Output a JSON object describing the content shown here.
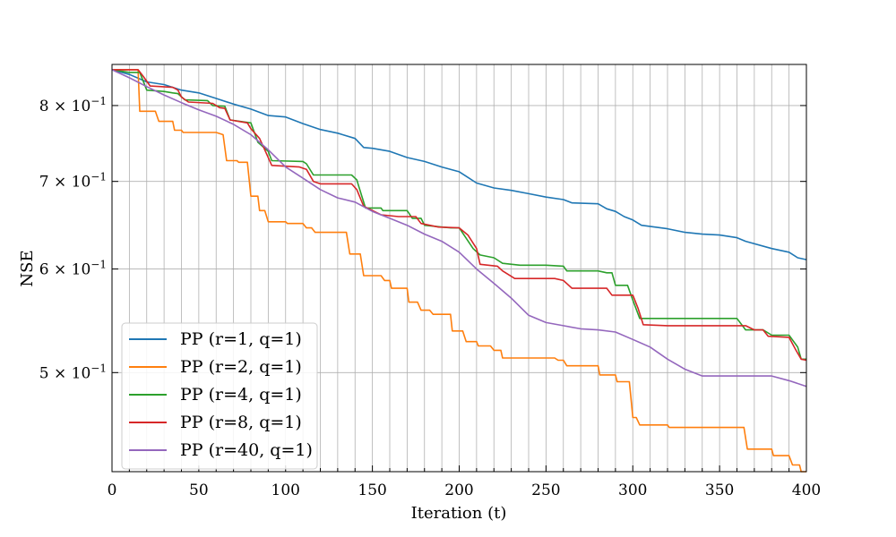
{
  "chart_data": {
    "type": "line",
    "xlabel": "Iteration (t)",
    "ylabel": "NSE",
    "xlim": [
      0,
      400
    ],
    "ylim": [
      0.42,
      0.86
    ],
    "log_y": true,
    "grid": true,
    "legend_position": "bottom-left",
    "x_ticks": [
      0,
      50,
      100,
      150,
      200,
      250,
      300,
      350,
      400
    ],
    "x_tick_labels": [
      "0",
      "50",
      "100",
      "150",
      "200",
      "250",
      "300",
      "350",
      "400"
    ],
    "y_ticks": [
      0.5,
      0.6,
      0.7,
      0.8
    ],
    "y_tick_labels": [
      {
        "base": "5 × 10",
        "exp": "−1"
      },
      {
        "base": "6 × 10",
        "exp": "−1"
      },
      {
        "base": "7 × 10",
        "exp": "−1"
      },
      {
        "base": "8 × 10",
        "exp": "−1"
      }
    ],
    "series": [
      {
        "name": "PP (r=1, q=1)",
        "color": "#1f77b4",
        "points": [
          [
            0,
            0.852
          ],
          [
            10,
            0.845
          ],
          [
            20,
            0.834
          ],
          [
            30,
            0.83
          ],
          [
            40,
            0.822
          ],
          [
            50,
            0.818
          ],
          [
            60,
            0.81
          ],
          [
            70,
            0.802
          ],
          [
            80,
            0.795
          ],
          [
            90,
            0.786
          ],
          [
            100,
            0.784
          ],
          [
            110,
            0.775
          ],
          [
            120,
            0.767
          ],
          [
            130,
            0.762
          ],
          [
            140,
            0.755
          ],
          [
            145,
            0.743
          ],
          [
            150,
            0.742
          ],
          [
            160,
            0.738
          ],
          [
            170,
            0.73
          ],
          [
            180,
            0.725
          ],
          [
            190,
            0.718
          ],
          [
            200,
            0.712
          ],
          [
            205,
            0.705
          ],
          [
            210,
            0.698
          ],
          [
            220,
            0.692
          ],
          [
            230,
            0.689
          ],
          [
            240,
            0.685
          ],
          [
            250,
            0.681
          ],
          [
            260,
            0.678
          ],
          [
            265,
            0.674
          ],
          [
            280,
            0.673
          ],
          [
            285,
            0.667
          ],
          [
            290,
            0.664
          ],
          [
            295,
            0.658
          ],
          [
            300,
            0.654
          ],
          [
            305,
            0.648
          ],
          [
            320,
            0.644
          ],
          [
            330,
            0.64
          ],
          [
            340,
            0.638
          ],
          [
            350,
            0.637
          ],
          [
            360,
            0.634
          ],
          [
            365,
            0.63
          ],
          [
            380,
            0.622
          ],
          [
            390,
            0.618
          ],
          [
            395,
            0.612
          ],
          [
            400,
            0.61
          ]
        ]
      },
      {
        "name": "PP (r=2, q=1)",
        "color": "#ff7f0e",
        "points": [
          [
            0,
            0.852
          ],
          [
            15,
            0.852
          ],
          [
            16,
            0.792
          ],
          [
            25,
            0.792
          ],
          [
            27,
            0.778
          ],
          [
            35,
            0.778
          ],
          [
            36,
            0.766
          ],
          [
            40,
            0.766
          ],
          [
            41,
            0.763
          ],
          [
            60,
            0.763
          ],
          [
            64,
            0.76
          ],
          [
            66,
            0.726
          ],
          [
            72,
            0.726
          ],
          [
            73,
            0.724
          ],
          [
            78,
            0.724
          ],
          [
            80,
            0.682
          ],
          [
            84,
            0.682
          ],
          [
            85,
            0.665
          ],
          [
            88,
            0.665
          ],
          [
            90,
            0.652
          ],
          [
            100,
            0.652
          ],
          [
            101,
            0.65
          ],
          [
            110,
            0.65
          ],
          [
            112,
            0.645
          ],
          [
            115,
            0.645
          ],
          [
            117,
            0.64
          ],
          [
            135,
            0.64
          ],
          [
            137,
            0.616
          ],
          [
            143,
            0.616
          ],
          [
            145,
            0.593
          ],
          [
            155,
            0.593
          ],
          [
            157,
            0.588
          ],
          [
            160,
            0.588
          ],
          [
            161,
            0.58
          ],
          [
            170,
            0.58
          ],
          [
            171,
            0.566
          ],
          [
            176,
            0.566
          ],
          [
            178,
            0.558
          ],
          [
            183,
            0.558
          ],
          [
            185,
            0.554
          ],
          [
            195,
            0.554
          ],
          [
            196,
            0.538
          ],
          [
            202,
            0.538
          ],
          [
            204,
            0.528
          ],
          [
            210,
            0.528
          ],
          [
            211,
            0.524
          ],
          [
            218,
            0.524
          ],
          [
            220,
            0.52
          ],
          [
            224,
            0.52
          ],
          [
            225,
            0.513
          ],
          [
            255,
            0.513
          ],
          [
            257,
            0.511
          ],
          [
            260,
            0.511
          ],
          [
            262,
            0.506
          ],
          [
            280,
            0.506
          ],
          [
            281,
            0.498
          ],
          [
            290,
            0.498
          ],
          [
            291,
            0.492
          ],
          [
            298,
            0.492
          ],
          [
            300,
            0.462
          ],
          [
            302,
            0.462
          ],
          [
            304,
            0.456
          ],
          [
            320,
            0.456
          ],
          [
            321,
            0.454
          ],
          [
            364,
            0.454
          ],
          [
            366,
            0.437
          ],
          [
            380,
            0.437
          ],
          [
            381,
            0.432
          ],
          [
            390,
            0.432
          ],
          [
            392,
            0.425
          ],
          [
            396,
            0.425
          ],
          [
            397,
            0.42
          ],
          [
            400,
            0.42
          ]
        ]
      },
      {
        "name": "PP (r=4, q=1)",
        "color": "#2ca02c",
        "points": [
          [
            0,
            0.852
          ],
          [
            10,
            0.848
          ],
          [
            16,
            0.848
          ],
          [
            20,
            0.822
          ],
          [
            30,
            0.82
          ],
          [
            35,
            0.818
          ],
          [
            38,
            0.817
          ],
          [
            42,
            0.808
          ],
          [
            55,
            0.807
          ],
          [
            58,
            0.8
          ],
          [
            65,
            0.799
          ],
          [
            68,
            0.78
          ],
          [
            80,
            0.776
          ],
          [
            84,
            0.75
          ],
          [
            90,
            0.738
          ],
          [
            92,
            0.726
          ],
          [
            110,
            0.725
          ],
          [
            112,
            0.722
          ],
          [
            116,
            0.708
          ],
          [
            138,
            0.708
          ],
          [
            141,
            0.702
          ],
          [
            142,
            0.695
          ],
          [
            146,
            0.668
          ],
          [
            155,
            0.668
          ],
          [
            156,
            0.665
          ],
          [
            170,
            0.665
          ],
          [
            173,
            0.656
          ],
          [
            178,
            0.656
          ],
          [
            180,
            0.648
          ],
          [
            190,
            0.646
          ],
          [
            195,
            0.645
          ],
          [
            200,
            0.645
          ],
          [
            208,
            0.622
          ],
          [
            212,
            0.615
          ],
          [
            220,
            0.612
          ],
          [
            225,
            0.606
          ],
          [
            235,
            0.604
          ],
          [
            250,
            0.604
          ],
          [
            260,
            0.603
          ],
          [
            262,
            0.598
          ],
          [
            280,
            0.598
          ],
          [
            285,
            0.596
          ],
          [
            288,
            0.596
          ],
          [
            290,
            0.583
          ],
          [
            297,
            0.583
          ],
          [
            300,
            0.568
          ],
          [
            304,
            0.55
          ],
          [
            360,
            0.55
          ],
          [
            365,
            0.539
          ],
          [
            375,
            0.539
          ],
          [
            380,
            0.534
          ],
          [
            390,
            0.534
          ],
          [
            395,
            0.523
          ],
          [
            397,
            0.512
          ],
          [
            400,
            0.512
          ]
        ]
      },
      {
        "name": "PP (r=8, q=1)",
        "color": "#d62728",
        "points": [
          [
            0,
            0.852
          ],
          [
            15,
            0.852
          ],
          [
            18,
            0.842
          ],
          [
            22,
            0.828
          ],
          [
            35,
            0.826
          ],
          [
            38,
            0.822
          ],
          [
            40,
            0.812
          ],
          [
            44,
            0.805
          ],
          [
            58,
            0.803
          ],
          [
            62,
            0.797
          ],
          [
            65,
            0.796
          ],
          [
            68,
            0.78
          ],
          [
            78,
            0.776
          ],
          [
            80,
            0.768
          ],
          [
            85,
            0.755
          ],
          [
            88,
            0.74
          ],
          [
            92,
            0.72
          ],
          [
            108,
            0.718
          ],
          [
            112,
            0.715
          ],
          [
            116,
            0.7
          ],
          [
            120,
            0.697
          ],
          [
            138,
            0.697
          ],
          [
            141,
            0.69
          ],
          [
            145,
            0.67
          ],
          [
            155,
            0.66
          ],
          [
            165,
            0.658
          ],
          [
            175,
            0.658
          ],
          [
            178,
            0.65
          ],
          [
            188,
            0.646
          ],
          [
            200,
            0.645
          ],
          [
            205,
            0.637
          ],
          [
            210,
            0.622
          ],
          [
            212,
            0.605
          ],
          [
            222,
            0.603
          ],
          [
            225,
            0.598
          ],
          [
            232,
            0.59
          ],
          [
            255,
            0.59
          ],
          [
            260,
            0.588
          ],
          [
            265,
            0.58
          ],
          [
            285,
            0.58
          ],
          [
            288,
            0.573
          ],
          [
            300,
            0.573
          ],
          [
            303,
            0.56
          ],
          [
            306,
            0.544
          ],
          [
            320,
            0.543
          ],
          [
            365,
            0.543
          ],
          [
            370,
            0.539
          ],
          [
            375,
            0.539
          ],
          [
            378,
            0.533
          ],
          [
            390,
            0.532
          ],
          [
            394,
            0.52
          ],
          [
            397,
            0.512
          ],
          [
            400,
            0.511
          ]
        ]
      },
      {
        "name": "PP (r=40, q=1)",
        "color": "#9467bd",
        "points": [
          [
            0,
            0.852
          ],
          [
            10,
            0.84
          ],
          [
            20,
            0.827
          ],
          [
            30,
            0.815
          ],
          [
            40,
            0.804
          ],
          [
            50,
            0.794
          ],
          [
            60,
            0.785
          ],
          [
            70,
            0.774
          ],
          [
            80,
            0.76
          ],
          [
            90,
            0.74
          ],
          [
            100,
            0.718
          ],
          [
            110,
            0.704
          ],
          [
            120,
            0.69
          ],
          [
            130,
            0.68
          ],
          [
            140,
            0.675
          ],
          [
            150,
            0.664
          ],
          [
            160,
            0.656
          ],
          [
            170,
            0.648
          ],
          [
            180,
            0.638
          ],
          [
            190,
            0.63
          ],
          [
            200,
            0.618
          ],
          [
            210,
            0.6
          ],
          [
            220,
            0.585
          ],
          [
            230,
            0.57
          ],
          [
            240,
            0.553
          ],
          [
            250,
            0.546
          ],
          [
            260,
            0.543
          ],
          [
            270,
            0.54
          ],
          [
            280,
            0.539
          ],
          [
            290,
            0.537
          ],
          [
            300,
            0.53
          ],
          [
            310,
            0.523
          ],
          [
            320,
            0.512
          ],
          [
            330,
            0.503
          ],
          [
            340,
            0.497
          ],
          [
            350,
            0.497
          ],
          [
            370,
            0.497
          ],
          [
            380,
            0.497
          ],
          [
            390,
            0.493
          ],
          [
            400,
            0.488
          ]
        ]
      }
    ]
  }
}
